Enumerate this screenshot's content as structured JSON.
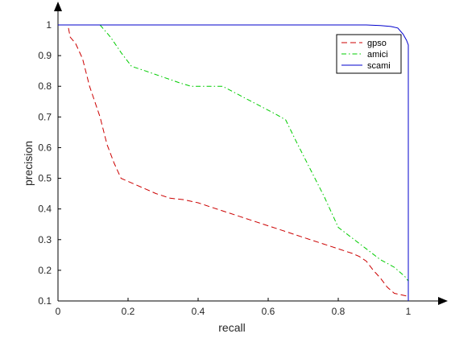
{
  "chart_data": {
    "type": "line",
    "title": "",
    "xlabel": "recall",
    "ylabel": "precision",
    "xlim": [
      0,
      1
    ],
    "ylim": [
      0.1,
      1
    ],
    "xticks": [
      0,
      0.2,
      0.4,
      0.6,
      0.8,
      1
    ],
    "xtick_labels": [
      "0",
      "0.2",
      "0.4",
      "0.6",
      "0.8",
      "1"
    ],
    "yticks": [
      0.1,
      0.2,
      0.3,
      0.4,
      0.5,
      0.6,
      0.7,
      0.8,
      0.9,
      1
    ],
    "ytick_labels": [
      "0.1",
      "0.2",
      "0.3",
      "0.4",
      "0.5",
      "0.6",
      "0.7",
      "0.8",
      "0.9",
      "1"
    ],
    "grid": false,
    "legend_position": "top-right",
    "axes_style": "arrow-axes",
    "series": [
      {
        "name": "gpso",
        "color": "#cc0000",
        "dash": "dashed",
        "x": [
          0.03,
          0.035,
          0.05,
          0.07,
          0.09,
          0.12,
          0.14,
          0.16,
          0.18,
          0.2,
          0.24,
          0.28,
          0.32,
          0.36,
          0.4,
          0.44,
          0.48,
          0.52,
          0.56,
          0.6,
          0.64,
          0.68,
          0.72,
          0.76,
          0.8,
          0.84,
          0.86,
          0.88,
          0.9,
          0.92,
          0.94,
          0.96,
          0.98,
          1.0
        ],
        "y": [
          0.99,
          0.96,
          0.94,
          0.89,
          0.8,
          0.7,
          0.61,
          0.55,
          0.5,
          0.49,
          0.47,
          0.45,
          0.435,
          0.43,
          0.42,
          0.405,
          0.39,
          0.375,
          0.36,
          0.345,
          0.33,
          0.315,
          0.3,
          0.285,
          0.27,
          0.255,
          0.245,
          0.23,
          0.2,
          0.175,
          0.145,
          0.125,
          0.12,
          0.115
        ]
      },
      {
        "name": "amici",
        "color": "#00cc00",
        "dash": "dashdot",
        "x": [
          0.12,
          0.15,
          0.18,
          0.21,
          0.25,
          0.3,
          0.35,
          0.38,
          0.42,
          0.47,
          0.52,
          0.57,
          0.62,
          0.65,
          0.68,
          0.72,
          0.76,
          0.8,
          0.84,
          0.88,
          0.92,
          0.96,
          0.99,
          1.0
        ],
        "y": [
          1.0,
          0.96,
          0.91,
          0.865,
          0.85,
          0.83,
          0.81,
          0.8,
          0.8,
          0.8,
          0.77,
          0.74,
          0.71,
          0.69,
          0.62,
          0.53,
          0.44,
          0.34,
          0.305,
          0.27,
          0.235,
          0.21,
          0.18,
          0.165
        ]
      },
      {
        "name": "scami",
        "color": "#0000cc",
        "dash": "solid",
        "x": [
          0.0,
          0.1,
          0.3,
          0.5,
          0.7,
          0.88,
          0.92,
          0.95,
          0.97,
          0.985,
          0.995,
          1.0,
          1.0
        ],
        "y": [
          1.0,
          1.0,
          1.0,
          1.0,
          1.0,
          1.0,
          0.998,
          0.995,
          0.99,
          0.97,
          0.95,
          0.935,
          0.1
        ]
      }
    ]
  }
}
